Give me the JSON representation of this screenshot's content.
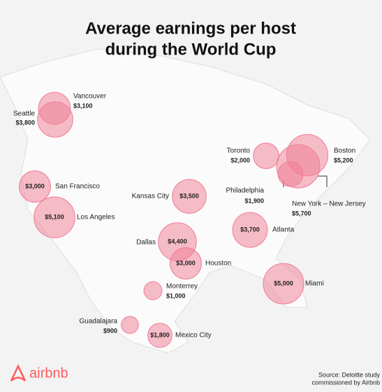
{
  "chart_data": {
    "type": "bubble-map",
    "title": [
      "Average earnings per host",
      "during the World Cup"
    ],
    "categories": [
      "Vancouver",
      "Seattle",
      "San Francisco",
      "Los Angeles",
      "Kansas City",
      "Dallas",
      "Houston",
      "Monterrey",
      "Guadalajara",
      "Mexico City",
      "Atlanta",
      "Miami",
      "Toronto",
      "Boston",
      "New York – New Jersey",
      "Philadelphia"
    ],
    "values": [
      3100,
      3800,
      3000,
      5100,
      3500,
      4400,
      3000,
      1000,
      900,
      1800,
      3700,
      5000,
      2000,
      5200,
      5700,
      1900
    ],
    "value_labels": [
      "$3,100",
      "$3,800",
      "$3,000",
      "$5,100",
      "$3,500",
      "$4,400",
      "$3,000",
      "$1,000",
      "$900",
      "$1,800",
      "$3,700",
      "$5,000",
      "$2,000",
      "$5,200",
      "$5,700",
      "$1,900"
    ],
    "color": "#f07c93",
    "brand": "airbnb",
    "source": [
      "Source:  Deloitte study",
      "commissioned by Airbnb"
    ]
  }
}
